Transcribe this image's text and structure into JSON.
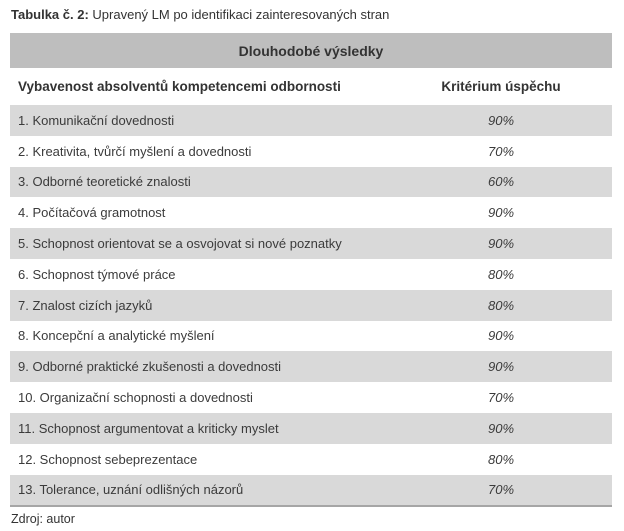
{
  "page": {
    "caption": {
      "label": "Tabulka č. 2:",
      "text": " Upravený LM po identifikaci zainteresovaných stran"
    },
    "source": "Zdroj: autor"
  },
  "table": {
    "title": "Dlouhodobé výsledky",
    "columns": [
      "Vybavenost absolventů kompetencemi odbornosti",
      "Kritérium úspěchu"
    ],
    "rows": [
      {
        "label": "1. Komunikační dovednosti",
        "value": "90%"
      },
      {
        "label": "2. Kreativita, tvůrčí myšlení a dovednosti",
        "value": "70%"
      },
      {
        "label": "3. Odborné teoretické znalosti",
        "value": "60%"
      },
      {
        "label": "4. Počítačová gramotnost",
        "value": "90%"
      },
      {
        "label": "5. Schopnost orientovat se a osvojovat si nové poznatky",
        "value": "90%"
      },
      {
        "label": "6. Schopnost týmové práce",
        "value": "80%"
      },
      {
        "label": "7. Znalost cizích jazyků",
        "value": "80%"
      },
      {
        "label": "8. Koncepční a analytické myšlení",
        "value": "90%"
      },
      {
        "label": "9. Odborné praktické zkušenosti a dovednosti",
        "value": "90%"
      },
      {
        "label": "10. Organizační schopnosti a dovednosti",
        "value": "70%"
      },
      {
        "label": "11. Schopnost argumentovat a kriticky myslet",
        "value": "90%"
      },
      {
        "label": "12. Schopnost sebeprezentace",
        "value": "80%"
      },
      {
        "label": "13. Tolerance, uznání odlišných názorů",
        "value": "70%"
      }
    ]
  },
  "colors": {
    "header_bg": "#bebebe",
    "row_alt_bg": "#d9d9d9",
    "bottom_rule": "#a6a6a6",
    "text": "#3b3b3b"
  }
}
